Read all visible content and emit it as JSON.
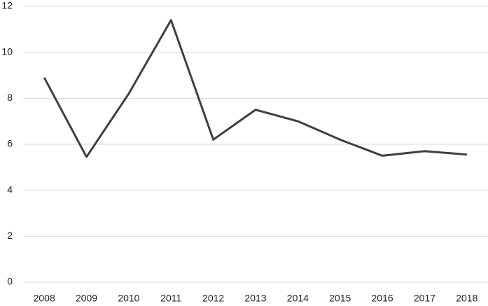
{
  "chart_data": {
    "type": "line",
    "categories": [
      "2008",
      "2009",
      "2010",
      "2011",
      "2012",
      "2013",
      "2014",
      "2015",
      "2016",
      "2017",
      "2018"
    ],
    "values": [
      8.9,
      5.45,
      8.2,
      11.4,
      6.2,
      7.5,
      7.0,
      6.2,
      5.5,
      5.7,
      5.55
    ],
    "color": "#404040",
    "ylim": [
      0,
      12
    ],
    "yticks": [
      0,
      2,
      4,
      6,
      8,
      10,
      12
    ],
    "grid": true
  }
}
